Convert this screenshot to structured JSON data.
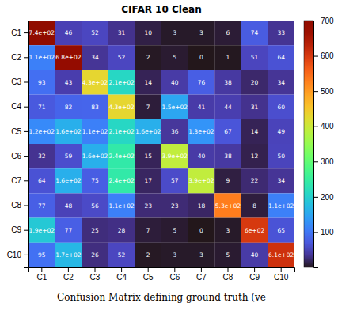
{
  "chart_data": {
    "type": "heatmap",
    "title": "CIFAR 10   Clean",
    "caption": "Confusion Matrix defining ground truth (ve",
    "categories": [
      "C1",
      "C2",
      "C3",
      "C4",
      "C5",
      "C6",
      "C7",
      "C8",
      "C9",
      "C10"
    ],
    "values": [
      [
        740,
        46,
        52,
        31,
        10,
        3,
        3,
        6,
        74,
        33
      ],
      [
        110,
        680,
        34,
        52,
        2,
        5,
        0,
        1,
        51,
        64
      ],
      [
        93,
        43,
        430,
        210,
        14,
        40,
        76,
        38,
        20,
        34
      ],
      [
        71,
        82,
        83,
        430,
        7,
        150,
        41,
        44,
        31,
        60
      ],
      [
        120,
        160,
        110,
        210,
        160,
        36,
        130,
        67,
        14,
        49
      ],
      [
        32,
        59,
        160,
        240,
        15,
        390,
        40,
        38,
        12,
        50
      ],
      [
        64,
        160,
        75,
        240,
        17,
        57,
        390,
        9,
        22,
        34
      ],
      [
        77,
        48,
        56,
        110,
        23,
        23,
        18,
        530,
        8,
        110
      ],
      [
        190,
        77,
        25,
        28,
        7,
        5,
        0,
        3,
        600,
        65
      ],
      [
        95,
        170,
        26,
        52,
        2,
        3,
        3,
        5,
        40,
        610
      ]
    ],
    "value_labels": [
      [
        "7.4e+02",
        "46",
        "52",
        "31",
        "10",
        "3",
        "3",
        "6",
        "74",
        "33"
      ],
      [
        "1.1e+02",
        "6.8e+02",
        "34",
        "52",
        "2",
        "5",
        "0",
        "1",
        "51",
        "64"
      ],
      [
        "93",
        "43",
        "4.3e+02",
        "2.1e+02",
        "14",
        "40",
        "76",
        "38",
        "20",
        "34"
      ],
      [
        "71",
        "82",
        "83",
        "4.3e+02",
        "7",
        "1.5e+02",
        "41",
        "44",
        "31",
        "60"
      ],
      [
        "1.2e+02",
        "1.6e+02",
        "1.1e+02",
        "2.1e+02",
        "1.6e+02",
        "36",
        "1.3e+02",
        "67",
        "14",
        "49"
      ],
      [
        "32",
        "59",
        "1.6e+02",
        "2.4e+02",
        "15",
        "3.9e+02",
        "40",
        "38",
        "12",
        "50"
      ],
      [
        "64",
        "1.6e+02",
        "75",
        "2.4e+02",
        "17",
        "57",
        "3.9e+02",
        "9",
        "22",
        "34"
      ],
      [
        "77",
        "48",
        "56",
        "1.1e+02",
        "23",
        "23",
        "18",
        "5.3e+02",
        "8",
        "1.1e+02"
      ],
      [
        "1.9e+02",
        "77",
        "25",
        "28",
        "7",
        "5",
        "0",
        "3",
        "6e+02",
        "65"
      ],
      [
        "95",
        "1.7e+02",
        "26",
        "52",
        "2",
        "3",
        "3",
        "5",
        "40",
        "6.1e+02"
      ]
    ],
    "data_labels": true,
    "color_range": [
      0,
      700
    ],
    "color_ticks": [
      100,
      200,
      300,
      400,
      500,
      600,
      700
    ]
  }
}
